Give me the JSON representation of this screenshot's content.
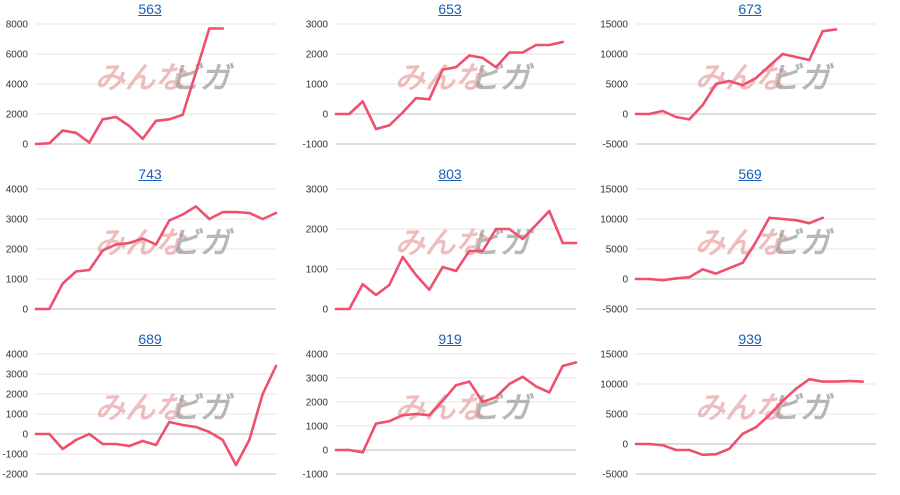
{
  "watermark": {
    "part1": "みんな",
    "part2": "ビガ",
    "color_pink": "#e8a3a3",
    "color_gray": "#9a9a9a"
  },
  "colors": {
    "line": "#f0506e",
    "grid": "#e6e6e6",
    "axis": "#bdbdbd",
    "title": "#1a5fb4"
  },
  "chart_data": [
    {
      "type": "line",
      "title": "563",
      "ylim": [
        0,
        8000
      ],
      "yticks": [
        0,
        2000,
        4000,
        6000,
        8000
      ],
      "series": [
        {
          "values": [
            0,
            50,
            900,
            750,
            100,
            1650,
            1800,
            1200,
            350,
            1550,
            1650,
            1950,
            4800,
            7700,
            7700
          ]
        }
      ]
    },
    {
      "type": "line",
      "title": "653",
      "ylim": [
        -1000,
        3000
      ],
      "yticks": [
        -1000,
        0,
        1000,
        2000,
        3000
      ],
      "series": [
        {
          "values": [
            0,
            0,
            420,
            -500,
            -380,
            50,
            530,
            490,
            1480,
            1560,
            1950,
            1870,
            1560,
            2050,
            2050,
            2300,
            2300,
            2400
          ]
        }
      ]
    },
    {
      "type": "line",
      "title": "673",
      "ylim": [
        -5000,
        15000
      ],
      "yticks": [
        -5000,
        0,
        5000,
        10000,
        15000
      ],
      "series": [
        {
          "values": [
            0,
            0,
            500,
            -500,
            -900,
            1500,
            5000,
            5500,
            4800,
            6000,
            8000,
            10000,
            9500,
            9000,
            13800,
            14100
          ]
        }
      ]
    },
    {
      "type": "line",
      "title": "743",
      "ylim": [
        0,
        4000
      ],
      "yticks": [
        0,
        1000,
        2000,
        3000,
        4000
      ],
      "series": [
        {
          "values": [
            0,
            0,
            850,
            1250,
            1300,
            1950,
            2150,
            2200,
            2350,
            2150,
            2950,
            3150,
            3420,
            3000,
            3230,
            3230,
            3200,
            3000,
            3200
          ]
        }
      ]
    },
    {
      "type": "line",
      "title": "803",
      "ylim": [
        0,
        3000
      ],
      "yticks": [
        0,
        1000,
        2000,
        3000
      ],
      "series": [
        {
          "values": [
            0,
            0,
            620,
            350,
            600,
            1300,
            850,
            480,
            1050,
            950,
            1450,
            1450,
            2000,
            2000,
            1750,
            2100,
            2450,
            1650,
            1650
          ]
        }
      ]
    },
    {
      "type": "line",
      "title": "569",
      "ylim": [
        -5000,
        15000
      ],
      "yticks": [
        -5000,
        0,
        5000,
        10000,
        15000
      ],
      "series": [
        {
          "values": [
            0,
            0,
            -200,
            100,
            300,
            1600,
            900,
            1800,
            2700,
            6200,
            10200,
            10000,
            9800,
            9300,
            10200
          ]
        }
      ]
    },
    {
      "type": "line",
      "title": "689",
      "ylim": [
        -2000,
        4000
      ],
      "yticks": [
        -2000,
        -1000,
        0,
        1000,
        2000,
        3000,
        4000
      ],
      "series": [
        {
          "values": [
            0,
            0,
            -750,
            -300,
            0,
            -500,
            -500,
            -600,
            -350,
            -550,
            600,
            450,
            350,
            100,
            -300,
            -1550,
            -300,
            2000,
            3400
          ]
        }
      ]
    },
    {
      "type": "line",
      "title": "919",
      "ylim": [
        -1000,
        4000
      ],
      "yticks": [
        -1000,
        0,
        1000,
        2000,
        3000,
        4000
      ],
      "series": [
        {
          "values": [
            0,
            0,
            -100,
            1100,
            1200,
            1450,
            1500,
            1450,
            2050,
            2700,
            2850,
            2000,
            2200,
            2750,
            3050,
            2650,
            2400,
            3500,
            3650
          ]
        }
      ]
    },
    {
      "type": "line",
      "title": "939",
      "ylim": [
        -5000,
        15000
      ],
      "yticks": [
        -5000,
        0,
        5000,
        10000,
        15000
      ],
      "series": [
        {
          "values": [
            0,
            0,
            -200,
            -1000,
            -1000,
            -1800,
            -1700,
            -800,
            1700,
            2800,
            4800,
            7200,
            9200,
            10800,
            10400,
            10400,
            10500,
            10400
          ]
        }
      ]
    }
  ]
}
